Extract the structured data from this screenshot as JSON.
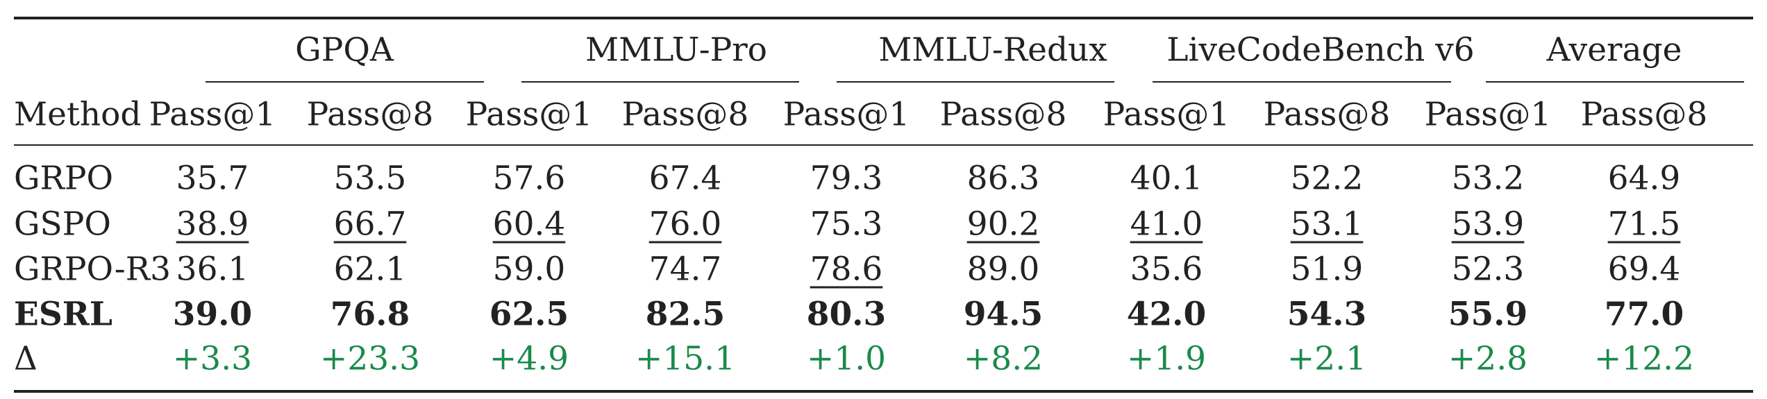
{
  "table": {
    "groups": [
      "GPQA",
      "MMLU-Pro",
      "MMLU-Redux",
      "LiveCodeBench v6",
      "Average"
    ],
    "method_header": "Method",
    "metric_headers": [
      "Pass@1",
      "Pass@8",
      "Pass@1",
      "Pass@8",
      "Pass@1",
      "Pass@8",
      "Pass@1",
      "Pass@8",
      "Pass@1",
      "Pass@8"
    ],
    "rows": [
      {
        "method": "GRPO",
        "values": [
          "35.7",
          "53.5",
          "57.6",
          "67.4",
          "79.3",
          "86.3",
          "40.1",
          "52.2",
          "53.2",
          "64.9"
        ],
        "underlined": [],
        "bold": false,
        "style": "normal"
      },
      {
        "method": "GSPO",
        "values": [
          "38.9",
          "66.7",
          "60.4",
          "76.0",
          "75.3",
          "90.2",
          "41.0",
          "53.1",
          "53.9",
          "71.5"
        ],
        "underlined": [
          0,
          1,
          2,
          3,
          5,
          6,
          7,
          8,
          9
        ],
        "bold": false,
        "style": "normal"
      },
      {
        "method": "GRPO-R3",
        "values": [
          "36.1",
          "62.1",
          "59.0",
          "74.7",
          "78.6",
          "89.0",
          "35.6",
          "51.9",
          "52.3",
          "69.4"
        ],
        "underlined": [
          4
        ],
        "bold": false,
        "style": "normal"
      },
      {
        "method": "ESRL",
        "values": [
          "39.0",
          "76.8",
          "62.5",
          "82.5",
          "80.3",
          "94.5",
          "42.0",
          "54.3",
          "55.9",
          "77.0"
        ],
        "underlined": [],
        "bold": true,
        "style": "normal"
      },
      {
        "method": "Δ",
        "values": [
          "+3.3",
          "+23.3",
          "+4.9",
          "+15.1",
          "+1.0",
          "+8.2",
          "+1.9",
          "+2.1",
          "+2.8",
          "+12.2"
        ],
        "underlined": [],
        "bold": false,
        "style": "delta"
      }
    ]
  },
  "colors": {
    "text": "#222222",
    "delta": "#1a8a4a",
    "rule": "#222222"
  }
}
